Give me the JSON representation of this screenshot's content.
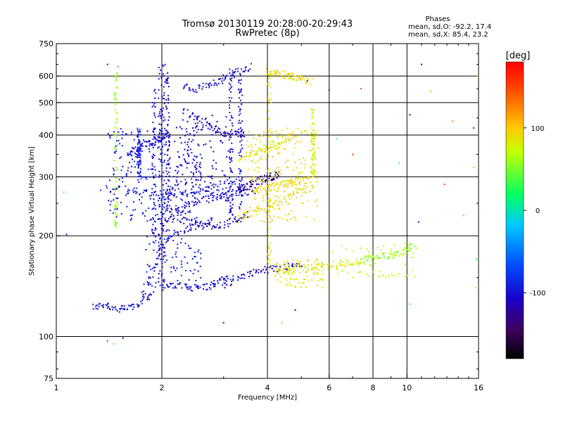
{
  "chart_data": {
    "type": "scatter",
    "title": "Tromsø 20130119 20:28:00-20:29:43",
    "subtitle": "RwPretec (8p)",
    "xlabel": "Frequency [MHz]",
    "ylabel": "Stationary phase Virtual Height [km]",
    "x_scale": "log",
    "y_scale": "log",
    "xlim": [
      1,
      16
    ],
    "ylim": [
      75,
      750
    ],
    "x_ticks": [
      1,
      2,
      4,
      6,
      8,
      10,
      16
    ],
    "x_tick_labels": [
      "1",
      "2",
      "4",
      "6",
      "8",
      "10",
      "16"
    ],
    "x_grid": [
      2,
      4,
      6,
      8,
      10
    ],
    "y_ticks": [
      75,
      100,
      200,
      300,
      400,
      500,
      600,
      750
    ],
    "y_tick_labels": [
      "75",
      "100",
      "200",
      "300",
      "400",
      "500",
      "600",
      "750"
    ],
    "y_grid": [
      100,
      200,
      300,
      400,
      500,
      600
    ],
    "grid": true,
    "colorbar": {
      "label": "[deg]",
      "min": -180,
      "max": 180,
      "ticks": [
        100,
        0,
        -100
      ],
      "tick_labels": [
        "100",
        "0",
        "-100"
      ],
      "colors": [
        "#000000",
        "#400060",
        "#1a00c8",
        "#0050ff",
        "#00c8ff",
        "#00ff64",
        "#c8ff00",
        "#ffc800",
        "#ff5000",
        "#ff0000"
      ]
    },
    "stats": {
      "heading": "Phases",
      "line1": "mean, sd,O: -92.2, 17.4",
      "line2": "mean, sd,X:  85.4, 23.2"
    },
    "traces": [
      {
        "x": [
          1.27,
          1.38,
          1.5,
          1.62,
          1.75,
          1.87
        ],
        "y": [
          122,
          125,
          120,
          122,
          127,
          135
        ],
        "phase": -100
      },
      {
        "x": [
          1.75,
          1.85,
          1.95,
          2.05,
          2.2,
          2.4,
          2.6,
          2.8
        ],
        "y": [
          135,
          148,
          170,
          195,
          205,
          210,
          215,
          225
        ],
        "phase": -105
      },
      {
        "x": [
          2.0,
          2.2,
          2.45,
          2.7,
          2.9,
          3.1
        ],
        "y": [
          140,
          142,
          140,
          141,
          145,
          150
        ],
        "phase": -100
      },
      {
        "x": [
          3.0,
          3.3,
          3.6,
          3.9,
          4.2,
          4.6,
          5.0
        ],
        "y": [
          143,
          150,
          155,
          158,
          160,
          162,
          165
        ],
        "phase": -110
      },
      {
        "x": [
          4.2,
          4.6,
          5.0,
          5.5,
          6.0,
          6.5,
          7.0,
          7.5
        ],
        "y": [
          155,
          157,
          160,
          160,
          163,
          163,
          166,
          168
        ],
        "phase": 80
      },
      {
        "x": [
          7.5,
          8.2,
          9.0,
          9.8,
          10.5
        ],
        "y": [
          170,
          172,
          175,
          180,
          188
        ],
        "phase": 60
      },
      {
        "x": [
          1.35,
          1.55,
          1.75,
          1.95,
          2.15,
          2.35,
          2.6,
          2.85,
          3.1,
          3.3
        ],
        "y": [
          280,
          275,
          270,
          265,
          262,
          262,
          270,
          280,
          285,
          290
        ],
        "phase": -95
      },
      {
        "x": [
          2.0,
          2.2,
          2.45,
          2.7,
          2.95,
          3.2,
          3.45,
          3.7
        ],
        "y": [
          265,
          270,
          272,
          275,
          270,
          268,
          270,
          275
        ],
        "phase": -100
      },
      {
        "x": [
          2.05,
          2.25,
          2.45,
          2.7,
          2.95,
          3.1
        ],
        "y": [
          235,
          240,
          250,
          258,
          262,
          260
        ],
        "phase": -105
      },
      {
        "x": [
          2.1,
          2.3,
          2.5,
          2.7,
          2.9,
          3.1,
          3.3,
          3.5
        ],
        "y": [
          228,
          222,
          218,
          215,
          215,
          218,
          224,
          232
        ],
        "phase": -110
      },
      {
        "x": [
          3.3,
          3.5,
          3.7,
          3.9,
          4.1,
          4.3
        ],
        "y": [
          275,
          280,
          290,
          295,
          300,
          305
        ],
        "phase": -130
      },
      {
        "x": [
          3.3,
          3.6,
          3.9,
          4.2,
          4.6,
          5.0,
          5.4
        ],
        "y": [
          225,
          232,
          240,
          250,
          260,
          270,
          280
        ],
        "phase": 90
      },
      {
        "x": [
          3.6,
          4.0,
          4.4,
          4.8,
          5.2
        ],
        "y": [
          270,
          278,
          285,
          290,
          293
        ],
        "phase": 95
      },
      {
        "x": [
          2.3,
          2.6,
          2.9,
          3.2,
          3.45
        ],
        "y": [
          470,
          440,
          410,
          400,
          405
        ],
        "phase": -110
      },
      {
        "x": [
          3.3,
          3.6,
          3.9,
          4.2,
          4.5,
          4.8
        ],
        "y": [
          340,
          350,
          360,
          375,
          390,
          400
        ],
        "phase": 85
      },
      {
        "x": [
          2.3,
          2.5,
          2.7,
          2.9,
          3.1,
          3.3,
          3.6
        ],
        "y": [
          560,
          550,
          560,
          575,
          600,
          620,
          640
        ],
        "phase": -100
      },
      {
        "x": [
          4.0,
          4.3,
          4.6,
          4.9,
          5.3
        ],
        "y": [
          620,
          610,
          600,
          590,
          580
        ],
        "phase": 90
      },
      {
        "x": [
          1.6,
          1.7,
          1.8,
          1.9,
          2.0,
          2.1
        ],
        "y": [
          350,
          360,
          375,
          385,
          395,
          400
        ],
        "phase": -105
      }
    ],
    "columns": [
      {
        "x": 1.98,
        "y0": 140,
        "y1": 640,
        "phase": -105
      },
      {
        "x": 2.02,
        "y0": 145,
        "y1": 650,
        "phase": -100
      },
      {
        "x": 1.9,
        "y0": 200,
        "y1": 560,
        "phase": -95
      },
      {
        "x": 2.08,
        "y0": 200,
        "y1": 620,
        "phase": -110
      },
      {
        "x": 3.15,
        "y0": 230,
        "y1": 630,
        "phase": -105
      },
      {
        "x": 3.35,
        "y0": 240,
        "y1": 640,
        "phase": -100
      },
      {
        "x": 1.48,
        "y0": 210,
        "y1": 620,
        "phase": 60
      },
      {
        "x": 4.05,
        "y0": 160,
        "y1": 620,
        "phase": 85
      },
      {
        "x": 5.4,
        "y0": 300,
        "y1": 480,
        "phase": 80
      },
      {
        "x": 1.72,
        "y0": 300,
        "y1": 420,
        "phase": -95
      }
    ],
    "blobs": [
      {
        "x": [
          1.4,
          2.6
        ],
        "y": [
          220,
          420
        ],
        "phase": -95,
        "n": 240
      },
      {
        "x": [
          2.2,
          3.1
        ],
        "y": [
          280,
          460
        ],
        "phase": -110,
        "n": 110
      },
      {
        "x": [
          3.5,
          5.6
        ],
        "y": [
          220,
          420
        ],
        "phase": 90,
        "n": 200
      },
      {
        "x": [
          4.2,
          5.8
        ],
        "y": [
          140,
          170
        ],
        "phase": 85,
        "n": 90
      },
      {
        "x": [
          6.0,
          10.5
        ],
        "y": [
          150,
          190
        ],
        "phase": 70,
        "n": 60
      },
      {
        "x": [
          1.8,
          2.6
        ],
        "y": [
          140,
          200
        ],
        "phase": -90,
        "n": 80
      }
    ],
    "scatter_points": [
      {
        "x": 1.05,
        "y": 270,
        "phase": 20
      },
      {
        "x": 1.07,
        "y": 202,
        "phase": -105
      },
      {
        "x": 1.4,
        "y": 97,
        "phase": 160
      },
      {
        "x": 1.46,
        "y": 95,
        "phase": 40
      },
      {
        "x": 1.55,
        "y": 99,
        "phase": -100
      },
      {
        "x": 1.4,
        "y": 650,
        "phase": -100
      },
      {
        "x": 1.5,
        "y": 640,
        "phase": 150
      },
      {
        "x": 4.4,
        "y": 110,
        "phase": 90
      },
      {
        "x": 4.8,
        "y": 120,
        "phase": -110
      },
      {
        "x": 5.2,
        "y": 580,
        "phase": -100
      },
      {
        "x": 6.3,
        "y": 390,
        "phase": 20
      },
      {
        "x": 7.0,
        "y": 350,
        "phase": 150
      },
      {
        "x": 9.5,
        "y": 330,
        "phase": 30
      },
      {
        "x": 10.2,
        "y": 460,
        "phase": -100
      },
      {
        "x": 11.0,
        "y": 650,
        "phase": -100
      },
      {
        "x": 12.8,
        "y": 285,
        "phase": 150
      },
      {
        "x": 13.5,
        "y": 440,
        "phase": 110
      },
      {
        "x": 14.5,
        "y": 230,
        "phase": 20
      },
      {
        "x": 15.5,
        "y": 320,
        "phase": 90
      },
      {
        "x": 15.5,
        "y": 420,
        "phase": -100
      },
      {
        "x": 15.7,
        "y": 140,
        "phase": 90
      },
      {
        "x": 15.8,
        "y": 170,
        "phase": 20
      },
      {
        "x": 10.8,
        "y": 220,
        "phase": -110
      },
      {
        "x": 10.2,
        "y": 125,
        "phase": 30
      },
      {
        "x": 7.4,
        "y": 550,
        "phase": 150
      },
      {
        "x": 6.0,
        "y": 545,
        "phase": -100
      },
      {
        "x": 3.0,
        "y": 110,
        "phase": -100
      },
      {
        "x": 11.7,
        "y": 540,
        "phase": 90
      },
      {
        "x": 15.9,
        "y": 600,
        "phase": 60
      }
    ]
  }
}
